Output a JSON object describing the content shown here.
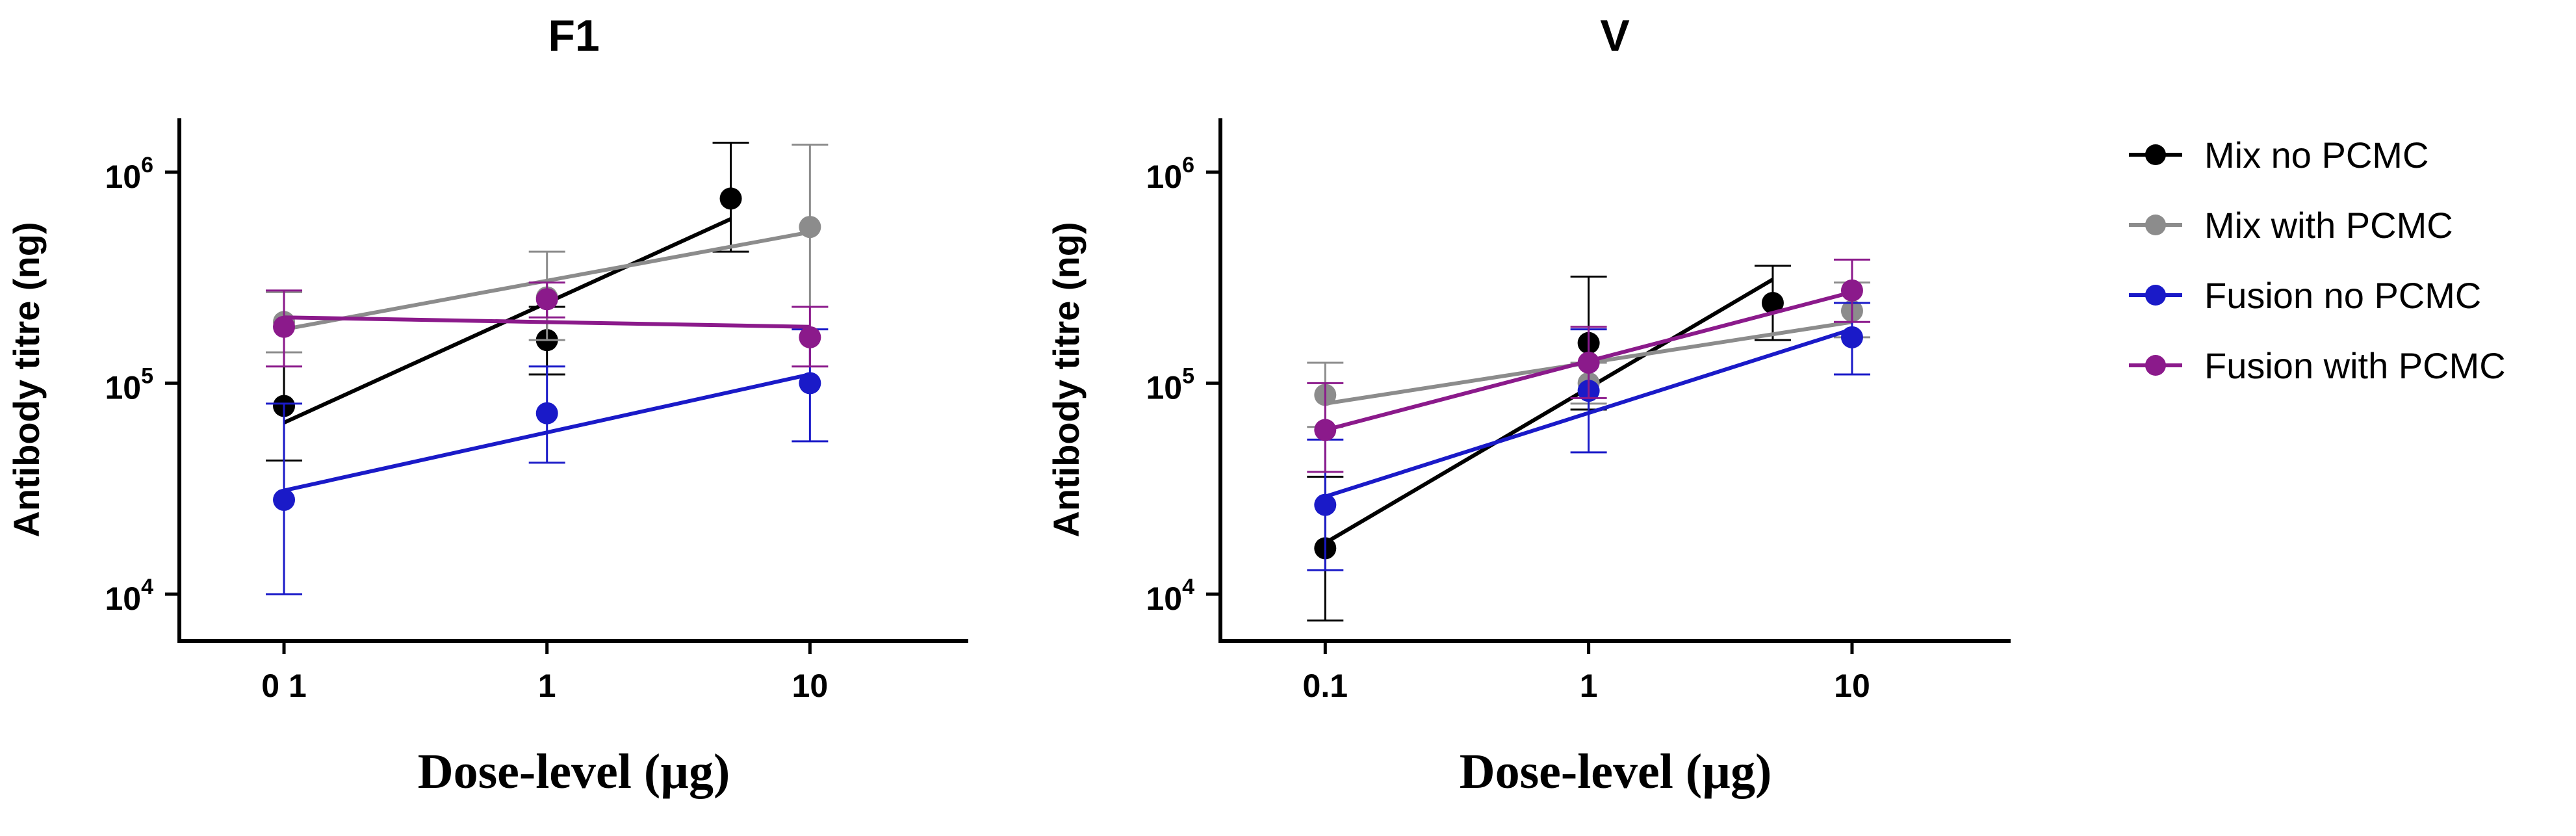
{
  "chart_data": [
    {
      "type": "scatter",
      "title": "F1",
      "xlabel": "Dose-level (µg)",
      "ylabel": "Antibody titre (ng)",
      "xscale": "log",
      "yscale": "log",
      "xlim": [
        0.04,
        40
      ],
      "ylim": [
        6000,
        1800000
      ],
      "xticks": [
        0.1,
        1,
        10
      ],
      "xtick_labels": [
        "0 1",
        "1",
        "10"
      ],
      "yticks": [
        10000,
        100000,
        1000000
      ],
      "ytick_labels": [
        {
          "base": "10",
          "exp": "4"
        },
        {
          "base": "10",
          "exp": "5"
        },
        {
          "base": "10",
          "exp": "6"
        }
      ],
      "series": [
        {
          "name": "Mix no PCMC",
          "color": "#000000",
          "points": [
            {
              "x": 0.1,
              "y": 78000,
              "lo": 43000,
              "hi": 140000
            },
            {
              "x": 1,
              "y": 160000,
              "lo": 110000,
              "hi": 230000
            },
            {
              "x": 5,
              "y": 750000,
              "lo": 420000,
              "hi": 1380000
            }
          ],
          "fit": [
            [
              0.1,
              65000
            ],
            [
              5,
              600000
            ]
          ]
        },
        {
          "name": "Mix with PCMC",
          "color": "#8c8c8c",
          "points": [
            {
              "x": 0.1,
              "y": 195000,
              "lo": 140000,
              "hi": 270000
            },
            {
              "x": 1,
              "y": 255000,
              "lo": 160000,
              "hi": 420000
            },
            {
              "x": 10,
              "y": 550000,
              "lo": 230000,
              "hi": 1350000
            }
          ],
          "fit": [
            [
              0.1,
              180000
            ],
            [
              10,
              520000
            ]
          ]
        },
        {
          "name": "Fusion no PCMC",
          "color": "#1a1ac8",
          "points": [
            {
              "x": 0.1,
              "y": 28000,
              "lo": 10000,
              "hi": 80000
            },
            {
              "x": 1,
              "y": 72000,
              "lo": 42000,
              "hi": 120000
            },
            {
              "x": 10,
              "y": 100000,
              "lo": 53000,
              "hi": 180000
            }
          ],
          "fit": [
            [
              0.1,
              31000
            ],
            [
              10,
              110000
            ]
          ]
        },
        {
          "name": "Fusion with PCMC",
          "color": "#8b1a8b",
          "points": [
            {
              "x": 0.1,
              "y": 185000,
              "lo": 120000,
              "hi": 275000
            },
            {
              "x": 1,
              "y": 250000,
              "lo": 205000,
              "hi": 300000
            },
            {
              "x": 10,
              "y": 165000,
              "lo": 120000,
              "hi": 230000
            }
          ],
          "fit": [
            [
              0.1,
              205000
            ],
            [
              10,
              185000
            ]
          ]
        }
      ]
    },
    {
      "type": "scatter",
      "title": "V",
      "xlabel": "Dose-level (µg)",
      "ylabel": "Antibody titre (ng)",
      "xscale": "log",
      "yscale": "log",
      "xlim": [
        0.04,
        40
      ],
      "ylim": [
        6000,
        1800000
      ],
      "xticks": [
        0.1,
        1,
        10
      ],
      "xtick_labels": [
        "0.1",
        "1",
        "10"
      ],
      "yticks": [
        10000,
        100000,
        1000000
      ],
      "ytick_labels": [
        {
          "base": "10",
          "exp": "4"
        },
        {
          "base": "10",
          "exp": "5"
        },
        {
          "base": "10",
          "exp": "6"
        }
      ],
      "series": [
        {
          "name": "Mix no PCMC",
          "color": "#000000",
          "points": [
            {
              "x": 0.1,
              "y": 16500,
              "lo": 7500,
              "hi": 36000
            },
            {
              "x": 1,
              "y": 155000,
              "lo": 75000,
              "hi": 320000
            },
            {
              "x": 5,
              "y": 240000,
              "lo": 160000,
              "hi": 360000
            }
          ],
          "fit": [
            [
              0.1,
              17500
            ],
            [
              5,
              310000
            ]
          ]
        },
        {
          "name": "Mix with PCMC",
          "color": "#8c8c8c",
          "points": [
            {
              "x": 0.1,
              "y": 88000,
              "lo": 62000,
              "hi": 125000
            },
            {
              "x": 1,
              "y": 100000,
              "lo": 80000,
              "hi": 125000
            },
            {
              "x": 10,
              "y": 220000,
              "lo": 165000,
              "hi": 300000
            }
          ],
          "fit": [
            [
              0.1,
              80000
            ],
            [
              10,
              195000
            ]
          ]
        },
        {
          "name": "Fusion no PCMC",
          "color": "#1a1ac8",
          "points": [
            {
              "x": 0.1,
              "y": 26500,
              "lo": 13000,
              "hi": 54000
            },
            {
              "x": 1,
              "y": 92000,
              "lo": 47000,
              "hi": 180000
            },
            {
              "x": 10,
              "y": 165000,
              "lo": 110000,
              "hi": 240000
            }
          ],
          "fit": [
            [
              0.1,
              29000
            ],
            [
              10,
              180000
            ]
          ]
        },
        {
          "name": "Fusion with PCMC",
          "color": "#8b1a8b",
          "points": [
            {
              "x": 0.1,
              "y": 60000,
              "lo": 38000,
              "hi": 100000
            },
            {
              "x": 1,
              "y": 125000,
              "lo": 85000,
              "hi": 185000
            },
            {
              "x": 10,
              "y": 275000,
              "lo": 195000,
              "hi": 385000
            }
          ],
          "fit": [
            [
              0.1,
              60000
            ],
            [
              10,
              270000
            ]
          ]
        }
      ]
    }
  ],
  "legend": {
    "placement": "right",
    "entries": [
      {
        "label": "Mix no PCMC",
        "color": "#000000"
      },
      {
        "label": "Mix with PCMC",
        "color": "#8c8c8c"
      },
      {
        "label": "Fusion no PCMC",
        "color": "#1a1ac8"
      },
      {
        "label": "Fusion with PCMC",
        "color": "#8b1a8b"
      }
    ]
  }
}
